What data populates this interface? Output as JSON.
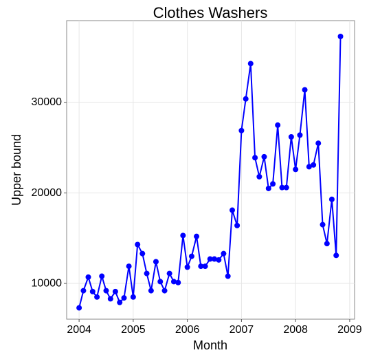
{
  "chart_data": {
    "type": "line",
    "title": "Clothes Washers",
    "x_label": "Month",
    "y_label": "Upper bound",
    "x": [
      2004.0,
      2004.08,
      2004.17,
      2004.25,
      2004.33,
      2004.42,
      2004.5,
      2004.58,
      2004.67,
      2004.75,
      2004.83,
      2004.92,
      2005.0,
      2005.08,
      2005.17,
      2005.25,
      2005.33,
      2005.42,
      2005.5,
      2005.58,
      2005.67,
      2005.75,
      2005.83,
      2005.92,
      2006.0,
      2006.08,
      2006.17,
      2006.25,
      2006.33,
      2006.42,
      2006.5,
      2006.58,
      2006.67,
      2006.75,
      2006.83,
      2006.92,
      2007.0,
      2007.08,
      2007.17,
      2007.25,
      2007.33,
      2007.42,
      2007.5,
      2007.58,
      2007.67,
      2007.75,
      2007.83,
      2007.92,
      2008.0,
      2008.08,
      2008.17,
      2008.25,
      2008.33,
      2008.42,
      2008.5,
      2008.58,
      2008.67,
      2008.75,
      2008.83
    ],
    "series": [
      {
        "name": "Upper bound",
        "color": "#0000ff",
        "values": [
          7300,
          9200,
          10700,
          9100,
          8500,
          10800,
          9200,
          8300,
          9100,
          7900,
          8400,
          11900,
          8500,
          14300,
          13300,
          11100,
          9200,
          12400,
          10200,
          9200,
          11100,
          10200,
          10100,
          15300,
          11800,
          13000,
          15200,
          11900,
          11900,
          12700,
          12700,
          12600,
          13300,
          10800,
          18100,
          16400,
          26900,
          30400,
          34300,
          23900,
          21800,
          24000,
          20500,
          21000,
          27500,
          20600,
          20600,
          26200,
          22600,
          26400,
          31400,
          22900,
          23100,
          25500,
          16500,
          14400,
          19300,
          13100,
          37300
        ]
      }
    ],
    "xlim": [
      2003.77,
      2009.09
    ],
    "xticks": [
      2004,
      2005,
      2006,
      2007,
      2008,
      2009
    ],
    "ylim": [
      6050,
      39050
    ],
    "yticks": [
      10000,
      20000,
      30000
    ],
    "grid": true
  }
}
